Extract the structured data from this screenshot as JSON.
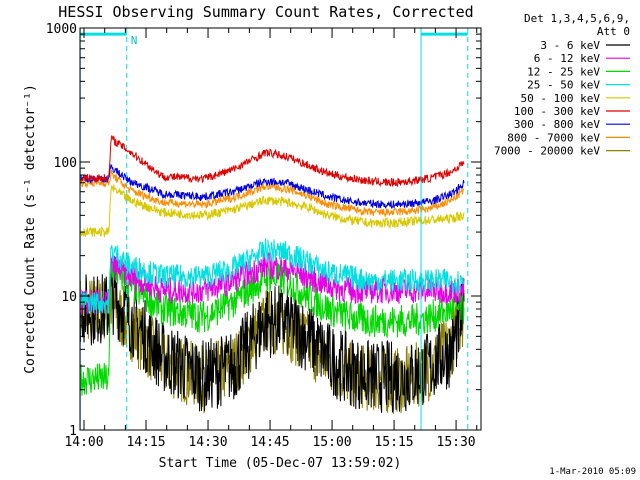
{
  "chart_data": {
    "type": "line",
    "title": "HESSI Observing Summary Count Rates, Corrected",
    "xlabel": "Start Time (05-Dec-07 13:59:02)",
    "ylabel": "Corrected Count Rate (s⁻¹ detector⁻¹)",
    "y_scale": "log",
    "ylim": [
      1,
      1000
    ],
    "xlim_minutes": [
      0,
      97
    ],
    "x_ticks": [
      "14:00",
      "14:15",
      "14:30",
      "14:45",
      "15:00",
      "15:15",
      "15:30"
    ],
    "y_ticks": [
      "1",
      "10",
      "100",
      "1000"
    ],
    "footer": "1-Mar-2010 05:09",
    "legend_header": [
      "Det 1,3,4,5,6,9,",
      "Att 0"
    ],
    "annotations": [
      {
        "text": "N",
        "x_minute": 11.3
      }
    ],
    "markers": {
      "night_solid_minutes": [
        0,
        23.3
      ],
      "dashed_minutes": [
        11.3,
        93.8
      ],
      "bar_ranges_minutes": [
        [
          0,
          11.3
        ],
        [
          82.5,
          93.8
        ]
      ],
      "bar_level": 900,
      "color": "#00e0e0"
    },
    "series": [
      {
        "name": "3 - 6 keV",
        "color": "#000000"
      },
      {
        "name": "6 - 12 keV",
        "color": "#e600e6"
      },
      {
        "name": "12 - 25 keV",
        "color": "#00d800"
      },
      {
        "name": "25 - 50 keV",
        "color": "#00e0e0"
      },
      {
        "name": "50 - 100 keV",
        "color": "#d8c800"
      },
      {
        "name": "100 - 300 keV",
        "color": "#e00000"
      },
      {
        "name": "300 - 800 keV",
        "color": "#0000e0"
      },
      {
        "name": "800 - 7000 keV",
        "color": "#ff8c00"
      },
      {
        "name": "7000 - 20000 keV",
        "color": "#8b8000"
      }
    ],
    "approx_profiles": {
      "x_minutes": [
        0,
        7,
        7.5,
        12,
        20,
        30,
        37,
        45,
        50,
        55,
        60,
        65,
        70,
        75,
        80,
        85,
        90,
        93
      ],
      "100 - 300 keV": [
        76,
        76,
        150,
        120,
        78,
        75,
        88,
        118,
        110,
        95,
        82,
        76,
        72,
        70,
        72,
        76,
        85,
        100
      ],
      "300 - 800 keV": [
        75,
        75,
        92,
        72,
        58,
        55,
        60,
        72,
        70,
        62,
        55,
        51,
        49,
        48,
        49,
        51,
        58,
        70
      ],
      "800 - 7000 keV": [
        70,
        70,
        82,
        62,
        50,
        48,
        54,
        66,
        63,
        56,
        48,
        45,
        42,
        42,
        43,
        45,
        52,
        62
      ],
      "50 - 100 keV": [
        30,
        30,
        65,
        52,
        42,
        40,
        44,
        52,
        50,
        46,
        40,
        37,
        35,
        35,
        36,
        37,
        38,
        40
      ],
      "25 - 50 keV": [
        9,
        9,
        22,
        17,
        14,
        14,
        16,
        22,
        21,
        18,
        15,
        14,
        13,
        13,
        13,
        13,
        13,
        13
      ],
      "6 - 12 keV": [
        9,
        9,
        17,
        14,
        11,
        11,
        13,
        17,
        16,
        14,
        12,
        11,
        11,
        11,
        11,
        11,
        11,
        11
      ],
      "12 - 25 keV": [
        2.4,
        2.4,
        17,
        12,
        8,
        7,
        9,
        14,
        13,
        10,
        8,
        7,
        6.5,
        6.5,
        6.5,
        7,
        8,
        8
      ],
      "3 - 6 keV": [
        8,
        8,
        10,
        7,
        3.5,
        2.5,
        3,
        6.5,
        6.5,
        5,
        3.5,
        2.8,
        2.5,
        2.5,
        2.5,
        3,
        4,
        8
      ],
      "7000 - 20000 keV": [
        8,
        8,
        8.5,
        6,
        3.2,
        2.4,
        3,
        6.5,
        6,
        4.5,
        3.2,
        2.6,
        2.4,
        2.3,
        2.4,
        3,
        4.5,
        8
      ]
    }
  }
}
